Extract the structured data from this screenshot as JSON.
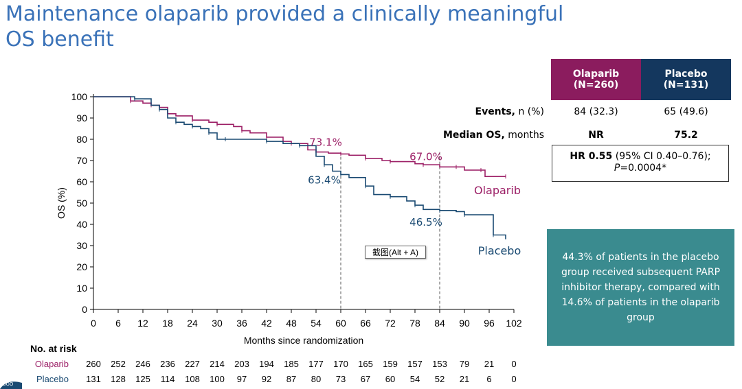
{
  "title": {
    "line1": "Maintenance olaparib provided a clinically meaningful",
    "line2": "OS benefit"
  },
  "chart_data": {
    "type": "line",
    "ylabel": "OS (%)",
    "xlabel": "Months since randomization",
    "xlim": [
      0,
      102
    ],
    "ylim": [
      0,
      100
    ],
    "x_ticks": [
      "0",
      "6",
      "12",
      "18",
      "24",
      "30",
      "36",
      "42",
      "48",
      "54",
      "60",
      "66",
      "72",
      "78",
      "84",
      "90",
      "96",
      "102"
    ],
    "y_ticks": [
      "0",
      "10",
      "20",
      "30",
      "40",
      "50",
      "60",
      "70",
      "80",
      "90",
      "100"
    ],
    "series": [
      {
        "name": "Olaparib",
        "color": "#9c1f66",
        "label": "Olaparib",
        "points": [
          [
            0,
            100
          ],
          [
            7,
            100
          ],
          [
            9,
            98
          ],
          [
            12,
            97
          ],
          [
            14,
            96
          ],
          [
            16,
            95
          ],
          [
            18,
            92
          ],
          [
            20,
            91
          ],
          [
            24,
            89
          ],
          [
            28,
            88
          ],
          [
            30,
            87
          ],
          [
            34,
            86
          ],
          [
            36,
            84
          ],
          [
            38,
            83
          ],
          [
            42,
            81
          ],
          [
            46,
            79
          ],
          [
            48,
            78
          ],
          [
            52,
            75
          ],
          [
            54,
            74
          ],
          [
            57,
            73.5
          ],
          [
            60,
            73.1
          ],
          [
            62,
            72.5
          ],
          [
            66,
            71
          ],
          [
            70,
            70
          ],
          [
            72,
            69.5
          ],
          [
            78,
            68.5
          ],
          [
            80,
            68
          ],
          [
            84,
            67
          ],
          [
            88,
            67
          ],
          [
            90,
            65.5
          ],
          [
            94,
            65.5
          ],
          [
            95,
            62.5
          ],
          [
            100,
            62.5
          ]
        ]
      },
      {
        "name": "Placebo",
        "color": "#1a4a72",
        "label": "Placebo",
        "points": [
          [
            0,
            100
          ],
          [
            9,
            100
          ],
          [
            10,
            99
          ],
          [
            14,
            96
          ],
          [
            16,
            94
          ],
          [
            18,
            90
          ],
          [
            20,
            88
          ],
          [
            22,
            87
          ],
          [
            24,
            86
          ],
          [
            26,
            85
          ],
          [
            28,
            83
          ],
          [
            30,
            80
          ],
          [
            32,
            80
          ],
          [
            38,
            80
          ],
          [
            42,
            79
          ],
          [
            46,
            78
          ],
          [
            50,
            77
          ],
          [
            54,
            72
          ],
          [
            56,
            68
          ],
          [
            58,
            65
          ],
          [
            60,
            63.4
          ],
          [
            62,
            62
          ],
          [
            66,
            58
          ],
          [
            68,
            54
          ],
          [
            72,
            53
          ],
          [
            76,
            51
          ],
          [
            78,
            49
          ],
          [
            80,
            47
          ],
          [
            84,
            46.5
          ],
          [
            88,
            46
          ],
          [
            90,
            44.5
          ],
          [
            96,
            44.5
          ],
          [
            97,
            35
          ],
          [
            100,
            33
          ]
        ]
      }
    ],
    "annotations": [
      {
        "text": "73.1%",
        "x": 60,
        "y": 73.1,
        "series": "Olaparib"
      },
      {
        "text": "67.0%",
        "x": 84,
        "y": 67.0,
        "series": "Olaparib"
      },
      {
        "text": "63.4%",
        "x": 60,
        "y": 63.4,
        "series": "Placebo"
      },
      {
        "text": "46.5%",
        "x": 84,
        "y": 46.5,
        "series": "Placebo"
      }
    ],
    "reference_lines_x": [
      60,
      84
    ]
  },
  "table": {
    "olaparib_header": "Olaparib",
    "olaparib_n": "(N=260)",
    "placebo_header": "Placebo",
    "placebo_n": "(N=131)",
    "olaparib_color": "#8b1c5e",
    "placebo_color": "#14375e",
    "events_label_bold": "Events,",
    "events_label_rest": " n (%)",
    "events_olaparib": "84 (32.3)",
    "events_placebo": "65 (49.6)",
    "median_label_bold": "Median OS,",
    "median_label_rest": " months",
    "median_olaparib": "NR",
    "median_placebo": "75.2",
    "hr_bold": "HR 0.55",
    "hr_rest": " (95% CI 0.40–0.76);",
    "p_label": "P",
    "p_value": "=0.0004*"
  },
  "callout": {
    "text": "44.3% of patients in the placebo group received subsequent PARP inhibitor therapy, compared with 14.6% of patients in the olaparib group"
  },
  "tooltip": {
    "text": "截图(Alt + A)"
  },
  "risk": {
    "header": "No. at risk",
    "olaparib_label": "Olaparib",
    "placebo_label": "Placebo",
    "olaparib": [
      "260",
      "252",
      "246",
      "236",
      "227",
      "214",
      "203",
      "194",
      "185",
      "177",
      "170",
      "165",
      "159",
      "157",
      "153",
      "79",
      "21",
      "0"
    ],
    "placebo": [
      "131",
      "128",
      "125",
      "114",
      "108",
      "100",
      "97",
      "92",
      "87",
      "80",
      "73",
      "67",
      "60",
      "54",
      "52",
      "21",
      "6",
      "0"
    ]
  },
  "logo": {
    "text": "SGO"
  }
}
